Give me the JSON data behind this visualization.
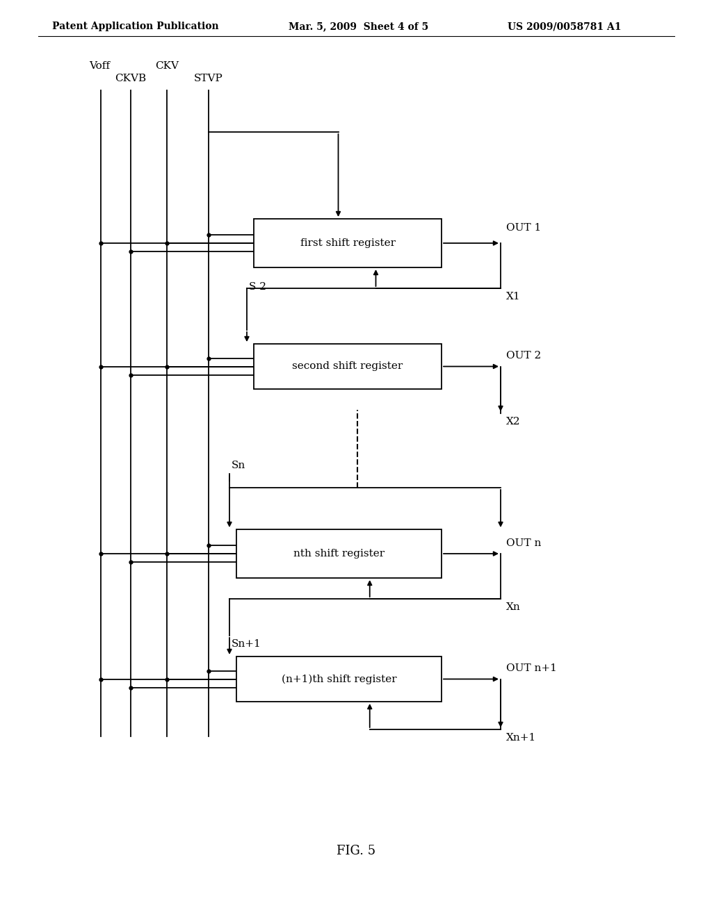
{
  "bg_color": "#ffffff",
  "header_left": "Patent Application Publication",
  "header_mid": "Mar. 5, 2009  Sheet 4 of 5",
  "header_right": "US 2009/0058781 A1",
  "footer_label": "FIG. 5",
  "signal_labels": [
    "Voff",
    "CKVB",
    "CKV",
    "STVP"
  ],
  "boxes": [
    {
      "label": "first shift register"
    },
    {
      "label": "second shift register"
    },
    {
      "label": "nth shift register"
    },
    {
      "label": "(n+1)th shift register"
    }
  ],
  "out_labels": [
    "OUT 1",
    "OUT 2",
    "OUT n",
    "OUT n+1"
  ],
  "x_labels": [
    "X1",
    "X2",
    "Xn",
    "Xn+1"
  ],
  "s_labels": [
    "S 2",
    "Sn",
    "Sn+1"
  ],
  "line_color": "#000000",
  "font_size_box": 11,
  "font_size_label": 11,
  "font_size_header": 10
}
